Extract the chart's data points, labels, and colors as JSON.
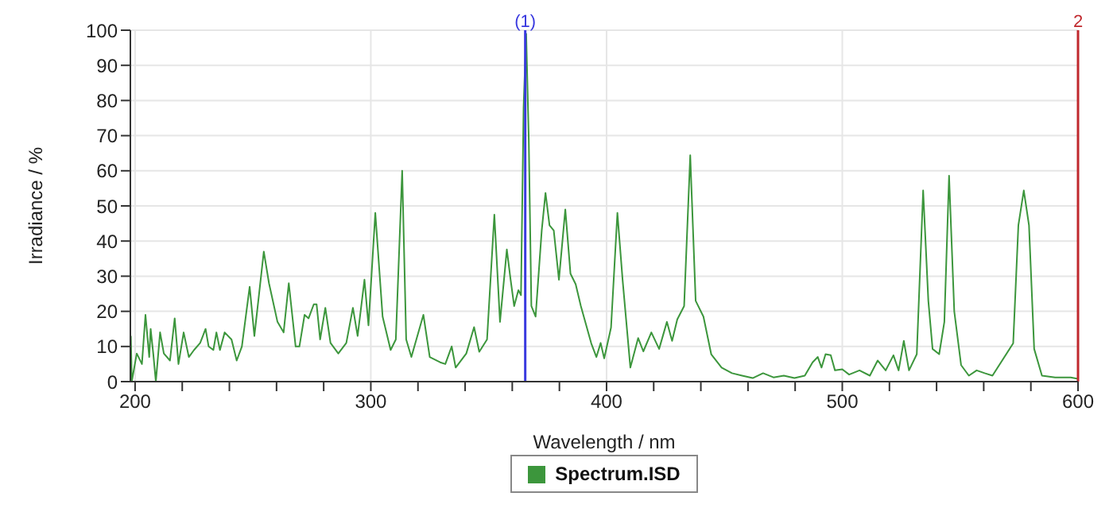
{
  "chart_data": {
    "type": "line",
    "xlabel": "Wavelength / nm",
    "ylabel": "Irradiance / %",
    "xlim": [
      198,
      600
    ],
    "ylim": [
      0,
      100
    ],
    "xticks": [
      200,
      {
        "value": 220,
        "label": null
      },
      {
        "value": 240,
        "label": null
      },
      {
        "value": 260,
        "label": null
      },
      {
        "value": 280,
        "label": null
      },
      300,
      {
        "value": 320,
        "label": null
      },
      {
        "value": 340,
        "label": null
      },
      {
        "value": 360,
        "label": null
      },
      {
        "value": 380,
        "label": null
      },
      400,
      {
        "value": 420,
        "label": null
      },
      {
        "value": 440,
        "label": null
      },
      {
        "value": 460,
        "label": null
      },
      {
        "value": 480,
        "label": null
      },
      500,
      {
        "value": 520,
        "label": null
      },
      {
        "value": 540,
        "label": null
      },
      {
        "value": 560,
        "label": null
      },
      {
        "value": 580,
        "label": null
      },
      600
    ],
    "yticks": [
      0,
      10,
      20,
      30,
      40,
      50,
      60,
      70,
      80,
      90,
      100
    ],
    "grid": true,
    "legend": "bottom",
    "marker": "none",
    "line_style": "solid",
    "ref_lines": [
      {
        "axis": "x",
        "value": 365.5,
        "color": "#3a3adf"
      },
      {
        "axis": "x",
        "value": 600,
        "color": "#c0282d"
      }
    ],
    "annotations": [
      {
        "text": "(1)",
        "x": 365.5,
        "y": 100
      },
      {
        "text": "2",
        "x": 600,
        "y": 100
      }
    ],
    "series": [
      {
        "name": "Spectrum.ISD",
        "color": "#3c963c",
        "x": [
          198.2,
          198.6,
          200.7,
          202.9,
          204.4,
          206,
          206.6,
          207.7,
          208.8,
          210.6,
          212.2,
          214.8,
          216.8,
          218.4,
          220.6,
          222.8,
          225,
          227.6,
          229.9,
          231.2,
          233.2,
          234.5,
          236,
          238,
          240.9,
          243.1,
          245.3,
          248.6,
          250.6,
          254.6,
          256.8,
          260.4,
          263,
          265.2,
          268.1,
          269.7,
          271.9,
          273.6,
          275.8,
          277,
          278.5,
          280.7,
          282.9,
          286.2,
          289.6,
          292.4,
          294.4,
          297.3,
          299,
          301.9,
          305,
          308.4,
          310.6,
          313.3,
          315,
          317.2,
          322.3,
          325,
          329.4,
          331.6,
          334.3,
          336,
          340.5,
          343.8,
          346,
          349.3,
          352.4,
          354.8,
          357.7,
          359.3,
          360.8,
          362.6,
          363.7,
          364.8,
          365.9,
          367,
          368.1,
          369.9,
          372.5,
          374.1,
          375.8,
          377.6,
          379.8,
          382.5,
          384.7,
          386.9,
          389.1,
          393.5,
          395.7,
          397.5,
          399,
          401.9,
          404.6,
          406.8,
          410.1,
          413.4,
          415.6,
          419,
          422.3,
          425.6,
          427.8,
          430,
          432.9,
          435.5,
          437.8,
          441.1,
          444.4,
          448.8,
          453.2,
          457.5,
          462,
          466.4,
          470.8,
          475.2,
          479.7,
          484.1,
          487.4,
          489.6,
          491.2,
          492.9,
          495.1,
          496.9,
          500,
          502.9,
          507.3,
          511.7,
          515,
          518.4,
          521.7,
          523.9,
          526.1,
          528.3,
          531.6,
          534.3,
          536.5,
          538.3,
          541.1,
          543.3,
          545.3,
          547.5,
          550.4,
          553.7,
          557,
          560.4,
          563.7,
          572.5,
          574.7,
          577,
          579.2,
          581.4,
          584.7,
          590.3,
          596.9,
          600
        ],
        "values": [
          13,
          0,
          8,
          5,
          19,
          7,
          15,
          8,
          0,
          14,
          8,
          6,
          18,
          5,
          14,
          7,
          9,
          11,
          15,
          10,
          9,
          14,
          9,
          14,
          12,
          6,
          10,
          27,
          13,
          37,
          28,
          17,
          14,
          28,
          10,
          10,
          19,
          18,
          22,
          22,
          12,
          21,
          11,
          8,
          11,
          21,
          13,
          29,
          16,
          48,
          18.5,
          9,
          12,
          60,
          12,
          7,
          19,
          7,
          5.5,
          5,
          10,
          4,
          8,
          15.5,
          8.5,
          12,
          47.5,
          17,
          37.6,
          29,
          21.5,
          26,
          24.6,
          78,
          99,
          69,
          21.5,
          18.5,
          43,
          53.7,
          44.5,
          43,
          29,
          49,
          30.7,
          27.7,
          21.5,
          10.9,
          7,
          11,
          6.6,
          15.4,
          48,
          29,
          4,
          12.4,
          8.6,
          14,
          9.3,
          17,
          11.6,
          17.7,
          21.5,
          64.4,
          23,
          18.5,
          7.8,
          4,
          2.4,
          1.7,
          1,
          2.4,
          1.2,
          1.7,
          1,
          1.7,
          5.5,
          7,
          4,
          7.8,
          7.5,
          3.2,
          3.5,
          2,
          3.2,
          1.7,
          6,
          3.2,
          7.5,
          3.2,
          11.6,
          3.2,
          7.8,
          54.4,
          23,
          9.3,
          7.8,
          17,
          58.6,
          20,
          4.7,
          1.7,
          3.2,
          2.4,
          1.7,
          10.9,
          44.5,
          54.4,
          44.5,
          9.3,
          1.7,
          1.2,
          1.2,
          0.8
        ]
      }
    ]
  }
}
